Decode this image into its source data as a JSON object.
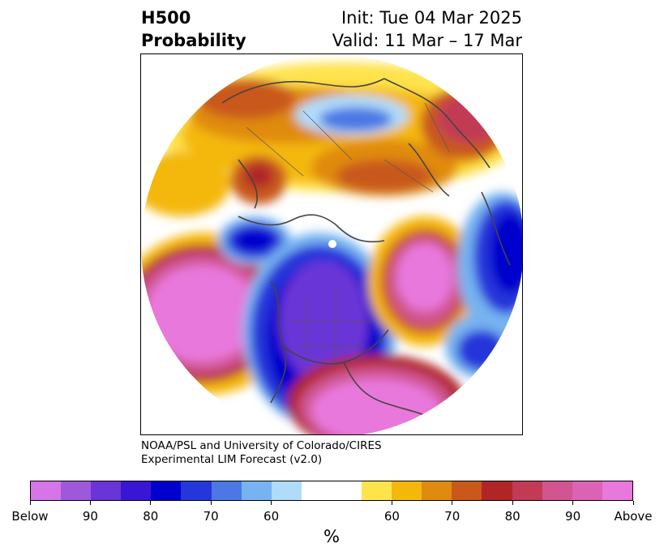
{
  "header": {
    "title_line1": "H500",
    "title_line2": "Probability",
    "init_text": "Init: Tue 04 Mar 2025",
    "valid_text": "Valid: 11 Mar – 17 Mar"
  },
  "credit": {
    "line1": "NOAA/PSL and University of Colorado/CIRES",
    "line2": "Experimental LIM Forecast (v2.0)"
  },
  "colorbar": {
    "colors": [
      "#d575e8",
      "#9e58dc",
      "#6a35d6",
      "#3916d3",
      "#0000cc",
      "#2536da",
      "#4b78e4",
      "#76b3f0",
      "#b0dcfa",
      "#ffffff",
      "#ffffff",
      "#ffe34d",
      "#f4b80c",
      "#e08b10",
      "#c9591a",
      "#b02626",
      "#c23a55",
      "#d05590",
      "#db62b4",
      "#e878dc"
    ],
    "ticks": [
      {
        "label": "Below",
        "frac": 0.0
      },
      {
        "label": "90",
        "frac": 0.1
      },
      {
        "label": "80",
        "frac": 0.2
      },
      {
        "label": "70",
        "frac": 0.3
      },
      {
        "label": "60",
        "frac": 0.4
      },
      {
        "label": "60",
        "frac": 0.6
      },
      {
        "label": "70",
        "frac": 0.7
      },
      {
        "label": "80",
        "frac": 0.8
      },
      {
        "label": "90",
        "frac": 0.9
      },
      {
        "label": "Above",
        "frac": 1.0
      }
    ],
    "unit": "%"
  }
}
